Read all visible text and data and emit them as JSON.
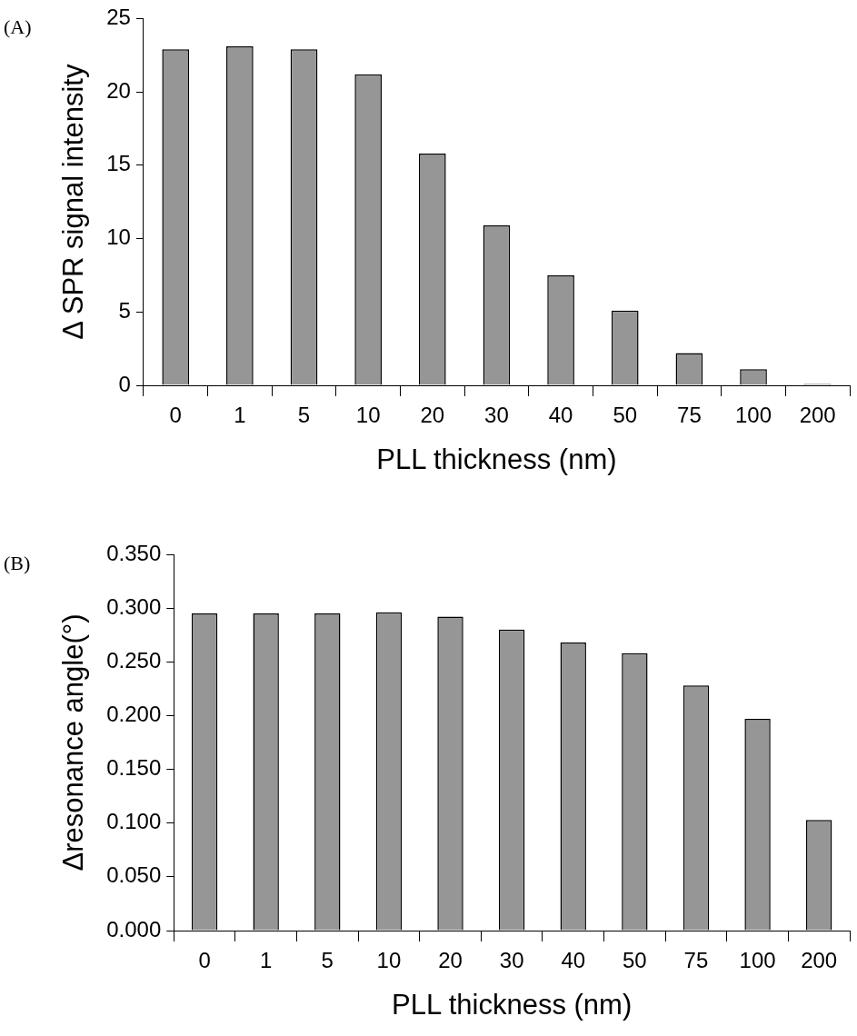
{
  "chart_data": [
    {
      "type": "bar",
      "annotations": [
        "(A)"
      ],
      "xlabel": "PLL thickness (nm)",
      "ylabel": "Δ SPR signal intensity",
      "categories": [
        "0",
        "1",
        "5",
        "10",
        "20",
        "30",
        "40",
        "50",
        "75",
        "100",
        "200"
      ],
      "values": [
        22.9,
        23.1,
        22.9,
        21.2,
        15.8,
        10.9,
        7.5,
        5.1,
        2.2,
        1.1,
        0.1
      ],
      "color": "#969696",
      "ylim": [
        0,
        25
      ],
      "yticks": [
        0,
        5,
        10,
        15,
        20,
        25
      ],
      "grid": false,
      "legend": false
    },
    {
      "type": "bar",
      "annotations": [
        "(B)"
      ],
      "xlabel": "PLL thickness (nm)",
      "ylabel": "Δresonance angle(°)",
      "categories": [
        "0",
        "1",
        "5",
        "10",
        "20",
        "30",
        "40",
        "50",
        "75",
        "100",
        "200"
      ],
      "values": [
        0.295,
        0.295,
        0.295,
        0.296,
        0.292,
        0.28,
        0.268,
        0.258,
        0.228,
        0.197,
        0.103
      ],
      "color": "#969696",
      "ylim": [
        0,
        0.35
      ],
      "yticks": [
        {
          "value": 0,
          "label": "0.000"
        },
        {
          "value": 0.05,
          "label": "0.050"
        },
        {
          "value": 0.1,
          "label": "0.100"
        },
        {
          "value": 0.15,
          "label": "0.150"
        },
        {
          "value": 0.2,
          "label": "0.200"
        },
        {
          "value": 0.25,
          "label": "0.250"
        },
        {
          "value": 0.3,
          "label": "0.300"
        },
        {
          "value": 0.35,
          "label": "0.350"
        }
      ],
      "grid": false,
      "legend": false
    }
  ]
}
